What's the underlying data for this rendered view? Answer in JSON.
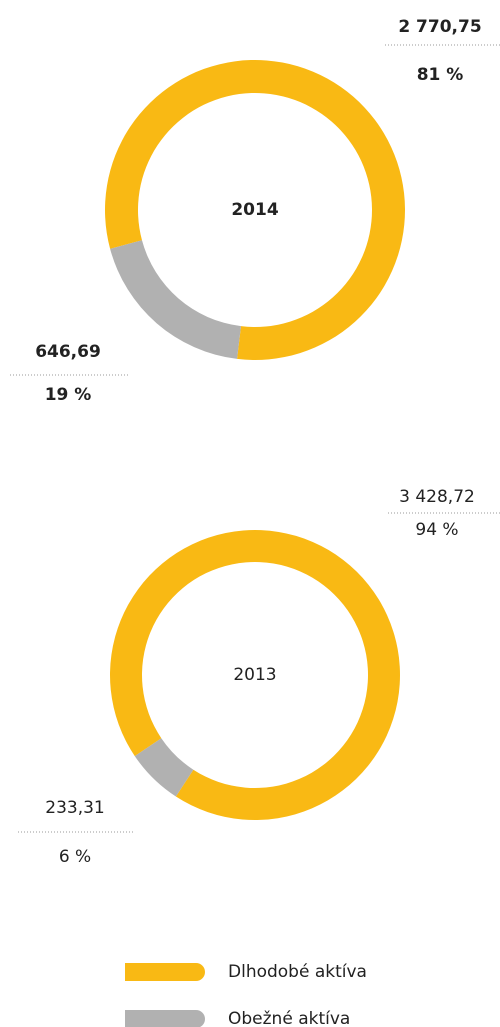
{
  "chart_data": [
    {
      "type": "pie",
      "center_label": "2014",
      "bold": true,
      "values": [
        2770.75,
        646.69
      ],
      "value_labels": [
        "2 770,75",
        "646,69"
      ],
      "percentages": [
        81,
        19
      ],
      "percentage_labels": [
        "81 %",
        "19 %"
      ],
      "colors": [
        "#f9b914",
        "#b1b1b1"
      ]
    },
    {
      "type": "pie",
      "center_label": "2013",
      "bold": false,
      "values": [
        3428.72,
        233.31
      ],
      "value_labels": [
        "3 428,72",
        "233,31"
      ],
      "percentages": [
        94,
        6
      ],
      "percentage_labels": [
        "94 %",
        "6 %"
      ],
      "colors": [
        "#f9b914",
        "#b1b1b1"
      ]
    }
  ],
  "legend": [
    {
      "name": "Dlhodobé aktíva",
      "color": "#f9b914"
    },
    {
      "name": "Obežné aktíva",
      "color": "#b1b1b1"
    }
  ]
}
